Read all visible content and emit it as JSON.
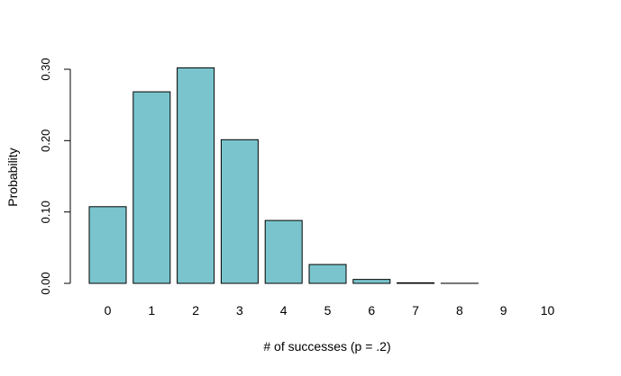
{
  "chart_data": {
    "type": "bar",
    "categories": [
      "0",
      "1",
      "2",
      "3",
      "4",
      "5",
      "6",
      "7",
      "8",
      "9",
      "10"
    ],
    "values": [
      0.1074,
      0.2684,
      0.302,
      0.2013,
      0.0881,
      0.0264,
      0.0055,
      0.0008,
      0.0001,
      0.0,
      0.0
    ],
    "title": "",
    "xlabel": "# of successes (p = .2)",
    "ylabel": "Probability",
    "ylim": [
      0,
      0.3
    ],
    "yticks": [
      "0.00",
      "0.10",
      "0.20",
      "0.30"
    ],
    "grid": false,
    "bar_color": "#7ac5cd",
    "bar_edge_color": "#000000"
  }
}
